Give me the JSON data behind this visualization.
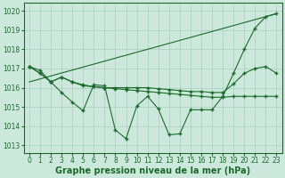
{
  "background_color": "#cce8dc",
  "grid_color": "#aaccbb",
  "line_color": "#1a6b2a",
  "xlabel": "Graphe pression niveau de la mer (hPa)",
  "xlabel_fontsize": 7,
  "ylim": [
    1012.6,
    1020.4
  ],
  "xlim": [
    -0.5,
    23.5
  ],
  "yticks": [
    1013,
    1014,
    1015,
    1016,
    1017,
    1018,
    1019,
    1020
  ],
  "xticks": [
    0,
    1,
    2,
    3,
    4,
    5,
    6,
    7,
    8,
    9,
    10,
    11,
    12,
    13,
    14,
    15,
    16,
    17,
    18,
    19,
    20,
    21,
    22,
    23
  ],
  "tick_fontsize": 5.5,
  "line_width": 0.8,
  "marker_size": 2.5,
  "lines": [
    {
      "x": [
        0,
        1,
        2,
        3,
        4,
        5,
        6,
        7,
        8,
        9,
        10,
        11,
        12,
        13,
        14,
        15,
        16,
        17,
        18,
        19,
        20,
        21,
        22,
        23
      ],
      "y": [
        1017.1,
        1016.9,
        1016.3,
        1015.75,
        1015.25,
        1014.8,
        1016.15,
        1016.1,
        1013.8,
        1013.35,
        1015.05,
        1015.55,
        1014.9,
        1013.55,
        1013.6,
        1014.85,
        1014.85,
        1014.85,
        1015.55,
        1016.75,
        1018.0,
        1019.1,
        1019.7,
        1019.85
      ],
      "marker": "+"
    },
    {
      "x": [
        0,
        23
      ],
      "y": [
        1016.3,
        1019.85
      ],
      "marker": null
    },
    {
      "x": [
        0,
        1,
        2,
        3,
        4,
        5,
        6,
        7,
        8,
        9,
        10,
        11,
        12,
        13,
        14,
        15,
        16,
        17,
        18,
        19,
        20,
        21,
        22,
        23
      ],
      "y": [
        1017.1,
        1016.75,
        1016.3,
        1016.55,
        1016.3,
        1016.15,
        1016.05,
        1016.0,
        1016.0,
        1016.0,
        1016.0,
        1016.0,
        1015.95,
        1015.9,
        1015.85,
        1015.8,
        1015.8,
        1015.75,
        1015.75,
        1016.2,
        1016.75,
        1017.0,
        1017.1,
        1016.75
      ],
      "marker": "+"
    },
    {
      "x": [
        0,
        1,
        2,
        3,
        4,
        5,
        6,
        7,
        8,
        9,
        10,
        11,
        12,
        13,
        14,
        15,
        16,
        17,
        18,
        19,
        20,
        21,
        22,
        23
      ],
      "y": [
        1017.1,
        1016.75,
        1016.3,
        1016.55,
        1016.3,
        1016.1,
        1016.05,
        1016.0,
        1015.95,
        1015.9,
        1015.85,
        1015.8,
        1015.75,
        1015.7,
        1015.65,
        1015.6,
        1015.55,
        1015.5,
        1015.5,
        1015.55,
        1015.55,
        1015.55,
        1015.55,
        1015.55
      ],
      "marker": "+"
    }
  ]
}
